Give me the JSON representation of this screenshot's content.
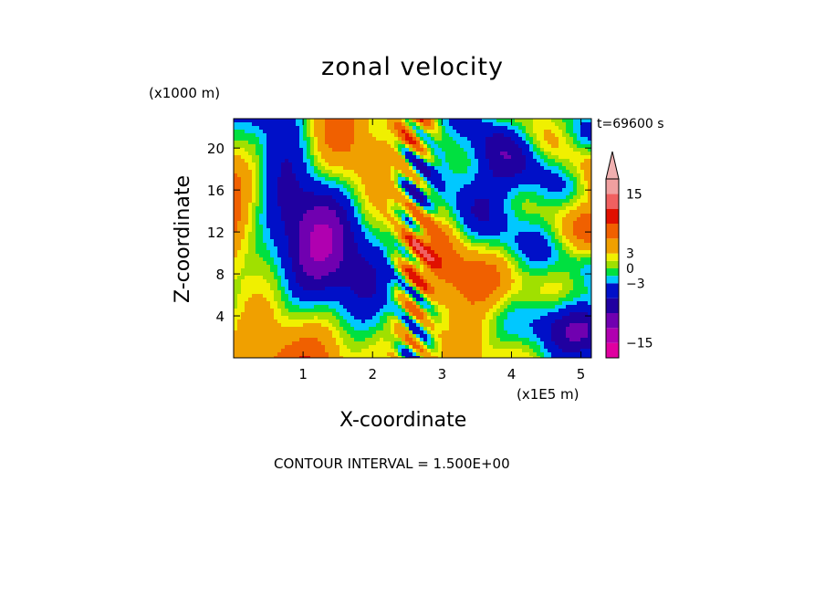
{
  "chart_data": {
    "type": "heatmap",
    "title": "zonal velocity",
    "xlabel": "X-coordinate",
    "ylabel": "Z-coordinate",
    "x_unit": "(x1E5 m)",
    "y_unit": "(x1000 m)",
    "time_label": "t=69600 s",
    "footer": "CONTOUR INTERVAL = 1.500E+00",
    "xlim": [
      0,
      5.15
    ],
    "ylim": [
      0,
      22.8
    ],
    "x_ticks": [
      {
        "value": 1,
        "label": "1"
      },
      {
        "value": 2,
        "label": "2"
      },
      {
        "value": 3,
        "label": "3"
      },
      {
        "value": 4,
        "label": "4"
      },
      {
        "value": 5,
        "label": "5"
      }
    ],
    "y_ticks": [
      {
        "value": 4,
        "label": "4"
      },
      {
        "value": 8,
        "label": "8"
      },
      {
        "value": 12,
        "label": "12"
      },
      {
        "value": 16,
        "label": "16"
      },
      {
        "value": 20,
        "label": "20"
      }
    ],
    "colorbar": {
      "levels": [
        -18,
        -15,
        -12,
        -9,
        -6,
        -3,
        -1.5,
        0,
        1.5,
        3,
        6,
        9,
        12,
        15,
        18
      ],
      "colors": [
        "#e000a0",
        "#b000b0",
        "#7000b0",
        "#2000a0",
        "#0010c8",
        "#00c8ff",
        "#00e040",
        "#a0e000",
        "#f0f000",
        "#f0a000",
        "#f06000",
        "#e01000",
        "#f06060",
        "#f0a0a0"
      ],
      "extend_color": "#f0b0b0",
      "tick_labels": [
        {
          "value": 15,
          "label": "15"
        },
        {
          "value": 3,
          "label": "3"
        },
        {
          "value": 0,
          "label": "0"
        },
        {
          "value": -3,
          "label": "−3"
        },
        {
          "value": -15,
          "label": "−15"
        }
      ]
    }
  }
}
